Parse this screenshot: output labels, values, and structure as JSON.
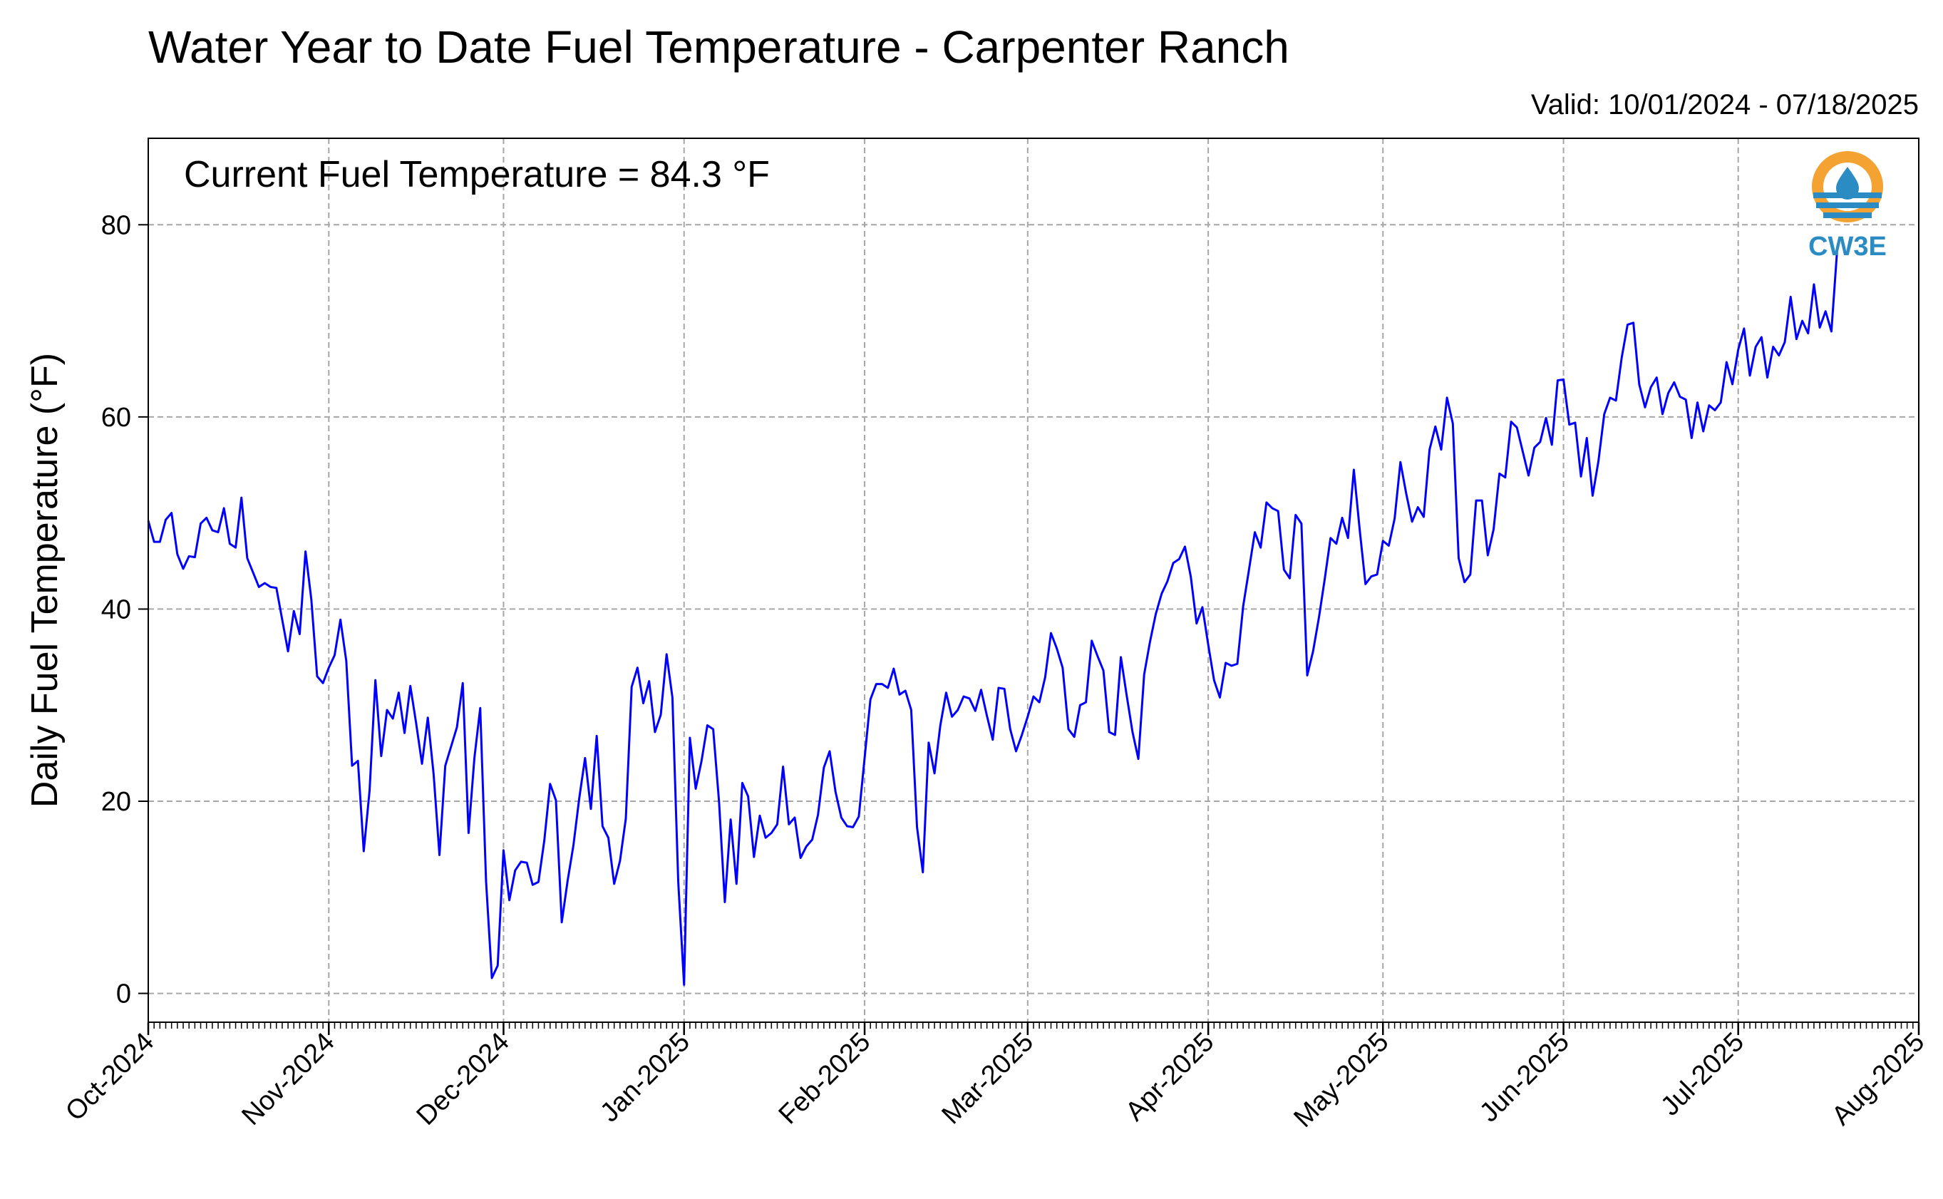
{
  "header": {
    "title": "Water Year to Date Fuel Temperature - Carpenter Ranch",
    "valid": "Valid: 10/01/2024 - 07/18/2025"
  },
  "annotation": "Current Fuel Temperature = 84.3 °F",
  "logo": {
    "text": "CW3E",
    "icon": "cw3e-logo-icon",
    "colors": {
      "ring": "#f4a232",
      "waves": "#2a8cc2"
    }
  },
  "colors": {
    "line": "#0000ff",
    "grid": "#a6a6a6"
  },
  "chart_data": {
    "type": "line",
    "ylabel": "Daily Fuel Temperature (°F)",
    "xlabel": "",
    "grid": true,
    "ylim": [
      -3,
      89
    ],
    "xlim": [
      "2024-10-01",
      "2025-08-01"
    ],
    "yticks": [
      0,
      20,
      40,
      60,
      80
    ],
    "xticks": [
      {
        "date": "2024-10-01",
        "label": "Oct-2024"
      },
      {
        "date": "2024-11-01",
        "label": "Nov-2024"
      },
      {
        "date": "2024-12-01",
        "label": "Dec-2024"
      },
      {
        "date": "2025-01-01",
        "label": "Jan-2025"
      },
      {
        "date": "2025-02-01",
        "label": "Feb-2025"
      },
      {
        "date": "2025-03-01",
        "label": "Mar-2025"
      },
      {
        "date": "2025-04-01",
        "label": "Apr-2025"
      },
      {
        "date": "2025-05-01",
        "label": "May-2025"
      },
      {
        "date": "2025-06-01",
        "label": "Jun-2025"
      },
      {
        "date": "2025-07-01",
        "label": "Jul-2025"
      },
      {
        "date": "2025-08-01",
        "label": "Aug-2025"
      }
    ],
    "start_date": "2024-10-01",
    "series": [
      {
        "values": [
          49.2,
          47.0,
          47.0,
          49.3,
          50.0,
          45.7,
          44.2,
          45.5,
          45.4,
          48.9,
          49.5,
          48.2,
          48.0,
          50.5,
          46.8,
          46.4,
          51.6,
          45.3,
          43.8,
          42.3,
          42.7,
          42.3,
          42.2,
          38.9,
          35.6,
          39.8,
          37.4,
          46.0,
          41.0,
          33.0,
          32.3,
          33.9,
          35.2,
          38.9,
          34.6,
          23.7,
          24.2,
          14.8,
          21.1,
          32.6,
          24.7,
          29.5,
          28.6,
          31.3,
          27.1,
          32.0,
          28.1,
          23.9,
          28.7,
          22.8,
          14.4,
          23.7,
          25.7,
          27.7,
          32.3,
          16.7,
          24.5,
          29.7,
          11.7,
          1.6,
          2.9,
          14.9,
          9.7,
          12.8,
          13.7,
          13.6,
          11.3,
          11.6,
          15.9,
          21.8,
          20.1,
          7.4,
          11.7,
          15.4,
          20.3,
          24.5,
          19.2,
          26.8,
          17.4,
          16.2,
          11.4,
          13.8,
          18.2,
          31.9,
          33.9,
          30.2,
          32.5,
          27.2,
          29.0,
          35.3,
          30.8,
          11.6,
          0.9,
          26.6,
          21.3,
          24.2,
          27.9,
          27.5,
          20.0,
          9.5,
          18.1,
          11.4,
          21.9,
          20.5,
          14.2,
          18.5,
          16.2,
          16.7,
          17.6,
          23.6,
          17.6,
          18.3,
          14.1,
          15.3,
          16.0,
          18.6,
          23.5,
          25.2,
          21.0,
          18.3,
          17.4,
          17.3,
          18.4,
          24.5,
          30.6,
          32.2,
          32.2,
          31.8,
          33.8,
          31.1,
          31.5,
          29.5,
          17.3,
          12.6,
          26.1,
          22.9,
          27.9,
          31.3,
          28.8,
          29.5,
          30.9,
          30.7,
          29.4,
          31.6,
          28.9,
          26.4,
          31.8,
          31.7,
          27.5,
          25.2,
          26.9,
          28.8,
          30.9,
          30.3,
          32.9,
          37.5,
          35.9,
          33.9,
          27.5,
          26.7,
          30.0,
          30.3,
          36.7,
          35.1,
          33.6,
          27.2,
          26.9,
          35.0,
          31.0,
          27.2,
          24.4,
          33.2,
          36.6,
          39.5,
          41.6,
          42.9,
          44.8,
          45.2,
          46.5,
          43.4,
          38.5,
          40.2,
          36.3,
          32.6,
          30.8,
          34.4,
          34.1,
          34.3,
          40.3,
          44.1,
          48.0,
          46.4,
          51.1,
          50.5,
          50.2,
          44.1,
          43.2,
          49.8,
          48.9,
          33.1,
          35.6,
          39.1,
          43.1,
          47.4,
          46.8,
          49.5,
          47.4,
          54.5,
          48.3,
          42.6,
          43.4,
          43.6,
          47.1,
          46.6,
          49.4,
          55.3,
          52.0,
          49.1,
          50.6,
          49.6,
          56.6,
          59.0,
          56.6,
          62.0,
          59.3,
          45.3,
          42.8,
          43.6,
          51.3,
          51.3,
          45.6,
          48.3,
          54.1,
          53.7,
          59.5,
          58.9,
          56.4,
          53.9,
          56.8,
          57.4,
          59.9,
          57.1,
          63.8,
          63.9,
          59.2,
          59.4,
          53.8,
          57.8,
          51.8,
          55.4,
          60.3,
          62.0,
          61.7,
          66.2,
          69.6,
          69.8,
          63.4,
          61.0,
          63.1,
          64.1,
          60.3,
          62.5,
          63.6,
          62.1,
          61.8,
          57.8,
          61.5,
          58.5,
          61.2,
          60.7,
          61.5,
          65.7,
          63.4,
          67.0,
          69.2,
          64.3,
          67.3,
          68.3,
          64.1,
          67.3,
          66.4,
          67.8,
          72.5,
          68.1,
          70.0,
          68.7,
          73.8,
          69.3,
          71.0,
          68.9,
          77.5
        ]
      }
    ]
  }
}
